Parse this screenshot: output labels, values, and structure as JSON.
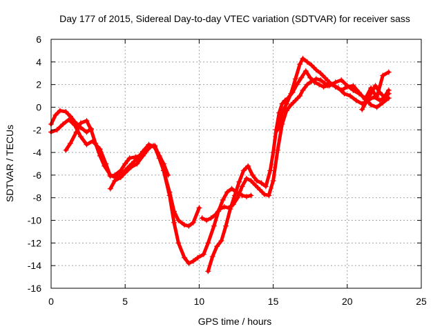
{
  "chart_data": {
    "type": "scatter",
    "title": "Day 177 of 2015, Sidereal Day-to-day VTEC variation (SDTVAR) for receiver sass",
    "xlabel": "GPS time / hours",
    "ylabel": "SDTVAR / TECUs",
    "xlim": [
      0,
      25
    ],
    "ylim": [
      -16,
      6
    ],
    "x_ticks": [
      0,
      5,
      10,
      15,
      20,
      25
    ],
    "y_ticks": [
      -16,
      -14,
      -12,
      -10,
      -8,
      -6,
      -4,
      -2,
      0,
      2,
      4,
      6
    ],
    "grid": true,
    "marker": "+",
    "color": "#ff0000",
    "series": [
      {
        "x": [
          0.0,
          0.3,
          0.6,
          1.0,
          1.3,
          1.6,
          2.0,
          2.4,
          2.7
        ],
        "y": [
          -1.5,
          -0.7,
          -0.3,
          -0.4,
          -0.8,
          -1.3,
          -1.8,
          -2.2,
          -1.9
        ]
      },
      {
        "x": [
          0.0,
          0.4,
          0.8,
          1.2,
          1.6,
          2.0,
          2.4,
          2.8,
          3.3,
          3.7,
          4.0,
          4.3,
          4.7,
          5.0,
          5.3,
          5.7,
          6.0,
          6.3,
          6.7,
          7.0,
          7.3,
          7.6,
          8.0,
          8.3,
          8.6,
          9.0,
          9.3,
          9.6,
          9.9,
          10.3,
          10.6,
          11.0,
          11.3,
          11.6,
          11.9,
          12.2,
          12.6,
          12.9,
          13.2,
          13.5
        ],
        "y": [
          -2.2,
          -2.0,
          -1.5,
          -1.1,
          -1.6,
          -2.6,
          -3.3,
          -3.0,
          -3.7,
          -5.0,
          -6.1,
          -6.0,
          -5.6,
          -5.0,
          -4.5,
          -4.4,
          -4.3,
          -4.1,
          -3.5,
          -3.4,
          -4.3,
          -5.6,
          -7.8,
          -10.2,
          -12.0,
          -13.3,
          -13.8,
          -13.6,
          -13.3,
          -13.0,
          -12.0,
          -10.5,
          -9.2,
          -8.2,
          -7.5,
          -7.2,
          -7.6,
          -7.8,
          -7.9,
          -7.8
        ]
      },
      {
        "x": [
          1.0,
          1.3,
          1.7,
          2.0,
          2.4,
          2.7,
          3.0,
          3.3,
          3.6,
          4.0,
          4.3,
          4.6,
          5.0,
          5.3,
          5.6,
          5.9,
          6.2,
          6.6,
          7.0,
          7.3,
          7.6,
          8.0,
          8.3,
          8.6,
          9.0,
          9.3,
          9.6,
          10.0
        ],
        "y": [
          -3.8,
          -3.2,
          -2.2,
          -1.4,
          -1.2,
          -2.0,
          -3.2,
          -4.3,
          -5.2,
          -6.0,
          -6.2,
          -6.0,
          -5.6,
          -5.2,
          -4.8,
          -4.4,
          -3.9,
          -3.3,
          -3.5,
          -4.5,
          -5.6,
          -7.5,
          -9.2,
          -10.0,
          -10.4,
          -10.5,
          -10.2,
          -8.9
        ]
      },
      {
        "x": [
          4.0,
          4.3,
          4.7,
          5.0,
          5.4,
          5.8,
          6.2,
          6.6,
          6.9,
          7.2,
          7.6,
          7.9
        ],
        "y": [
          -7.2,
          -6.5,
          -6.2,
          -5.8,
          -5.3,
          -5.0,
          -4.3,
          -3.6,
          -3.4,
          -4.0,
          -5.0,
          -6.0
        ]
      },
      {
        "x": [
          10.6,
          10.9,
          11.2,
          11.5,
          11.8,
          12.1,
          12.4,
          12.7,
          13.0,
          13.3,
          13.6,
          13.9,
          14.2,
          14.5,
          14.8,
          15.0,
          15.2,
          15.4,
          15.6,
          15.8,
          16.0,
          16.3,
          16.6,
          16.9,
          17.2,
          17.5,
          17.8,
          18.1,
          18.4,
          18.7,
          19.0,
          19.4,
          19.8,
          20.2,
          20.6,
          21.0,
          21.4,
          21.8,
          22.2,
          22.6,
          22.8
        ],
        "y": [
          -14.5,
          -13.2,
          -12.3,
          -11.8,
          -10.5,
          -9.0,
          -7.8,
          -6.6,
          -5.6,
          -5.2,
          -6.0,
          -6.5,
          -6.7,
          -7.0,
          -5.6,
          -4.0,
          -2.0,
          -0.5,
          0.3,
          0.6,
          0.8,
          1.3,
          2.0,
          2.6,
          3.2,
          2.6,
          2.2,
          2.0,
          1.8,
          1.9,
          2.0,
          1.7,
          1.2,
          1.0,
          0.6,
          0.3,
          0.6,
          0.9,
          0.6,
          0.9,
          1.2
        ]
      },
      {
        "x": [
          10.2,
          10.5,
          10.8,
          11.1,
          11.4,
          11.7,
          12.0,
          12.3,
          12.6,
          12.9,
          13.2,
          13.5,
          13.8,
          14.1,
          14.4,
          14.7,
          15.0,
          15.3,
          15.6,
          15.9,
          16.2,
          16.5,
          16.8,
          17.0,
          17.3,
          17.6,
          17.9,
          18.2,
          18.5,
          18.8,
          19.2,
          19.6,
          20.0,
          20.4,
          20.8,
          21.2,
          21.6,
          22.0,
          22.4,
          22.8
        ],
        "y": [
          -9.8,
          -10.0,
          -9.8,
          -9.5,
          -9.0,
          -8.8,
          -8.9,
          -8.6,
          -8.0,
          -7.0,
          -6.3,
          -6.5,
          -6.9,
          -7.3,
          -7.7,
          -7.8,
          -6.5,
          -3.8,
          -1.5,
          -0.3,
          0.2,
          0.6,
          1.0,
          1.5,
          2.0,
          2.3,
          2.5,
          2.4,
          2.1,
          1.9,
          2.2,
          2.4,
          1.9,
          1.5,
          1.2,
          0.8,
          0.2,
          0.0,
          0.4,
          0.8
        ]
      },
      {
        "x": [
          15.3,
          15.6,
          15.9,
          16.2,
          16.5,
          16.8,
          17.0,
          17.3,
          17.6,
          17.9,
          18.2,
          18.5,
          18.8,
          19.2,
          19.6,
          20.0,
          20.4,
          20.8,
          21.2,
          21.6,
          22.0,
          22.4,
          22.8
        ],
        "y": [
          -2.0,
          -0.5,
          0.3,
          1.2,
          2.5,
          3.8,
          4.3,
          4.0,
          3.7,
          3.3,
          3.0,
          2.6,
          2.2,
          1.8,
          1.5,
          1.8,
          1.9,
          1.3,
          0.7,
          1.7,
          0.9,
          2.8,
          3.1
        ]
      },
      {
        "x": [
          21.0,
          21.3,
          21.6,
          21.9,
          22.2,
          22.5,
          22.8
        ],
        "y": [
          -0.2,
          0.5,
          1.2,
          1.9,
          1.3,
          0.9,
          1.5
        ]
      }
    ]
  }
}
